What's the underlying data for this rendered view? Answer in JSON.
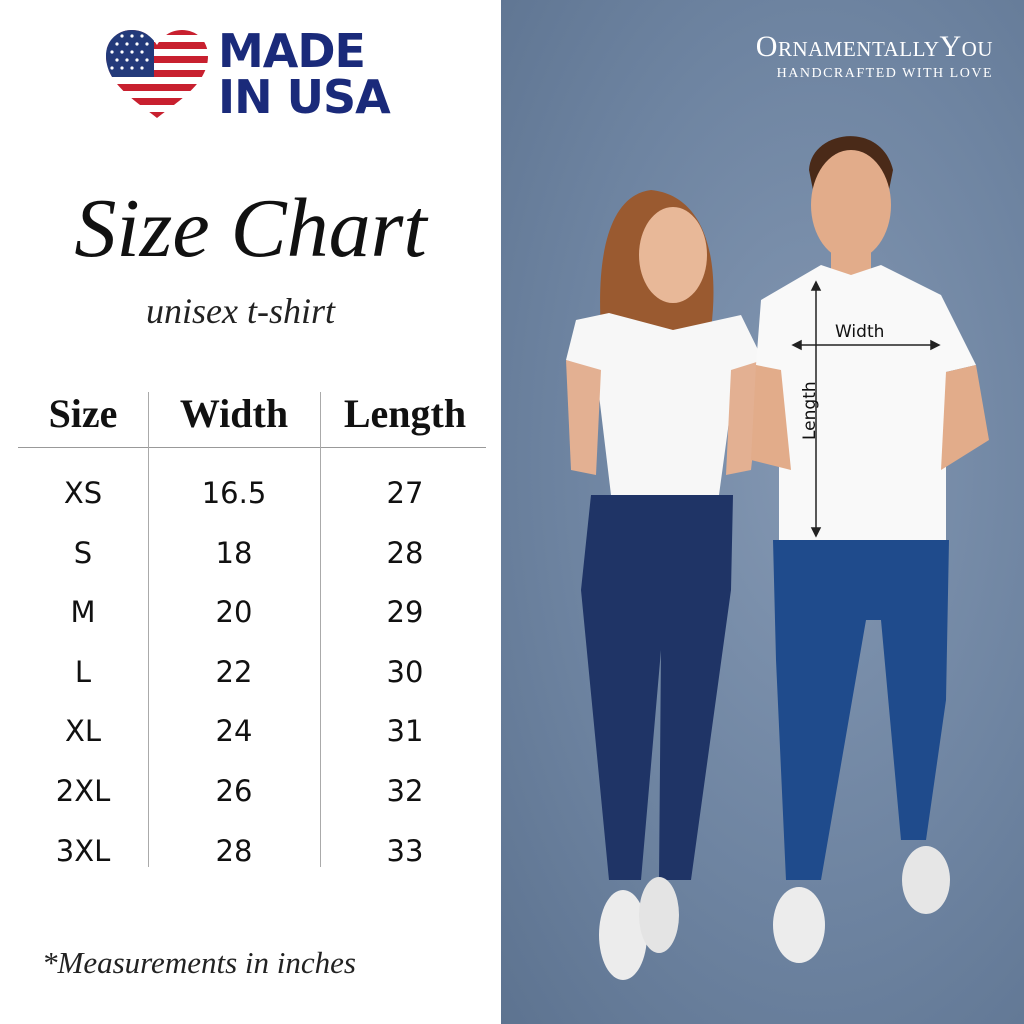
{
  "badge": {
    "line1": "MADE",
    "line2": "IN USA"
  },
  "title": "Size Chart",
  "subtitle": "unisex t-shirt",
  "table": {
    "headers": [
      "Size",
      "Width",
      "Length"
    ],
    "rows": [
      [
        "XS",
        "16.5",
        "27"
      ],
      [
        "S",
        "18",
        "28"
      ],
      [
        "M",
        "20",
        "29"
      ],
      [
        "L",
        "22",
        "30"
      ],
      [
        "XL",
        "24",
        "31"
      ],
      [
        "2XL",
        "26",
        "32"
      ],
      [
        "3XL",
        "28",
        "33"
      ]
    ]
  },
  "note": "*Measurements in inches",
  "brand": {
    "name": "OrnamentallyYou",
    "tagline": "HANDCRAFTED WITH LOVE"
  },
  "photo": {
    "width_label": "Width",
    "length_label": "Length"
  },
  "colors": {
    "navy": "#1a2a7a",
    "flag_red": "#c8202f",
    "background_blue": "#6e84a1"
  }
}
